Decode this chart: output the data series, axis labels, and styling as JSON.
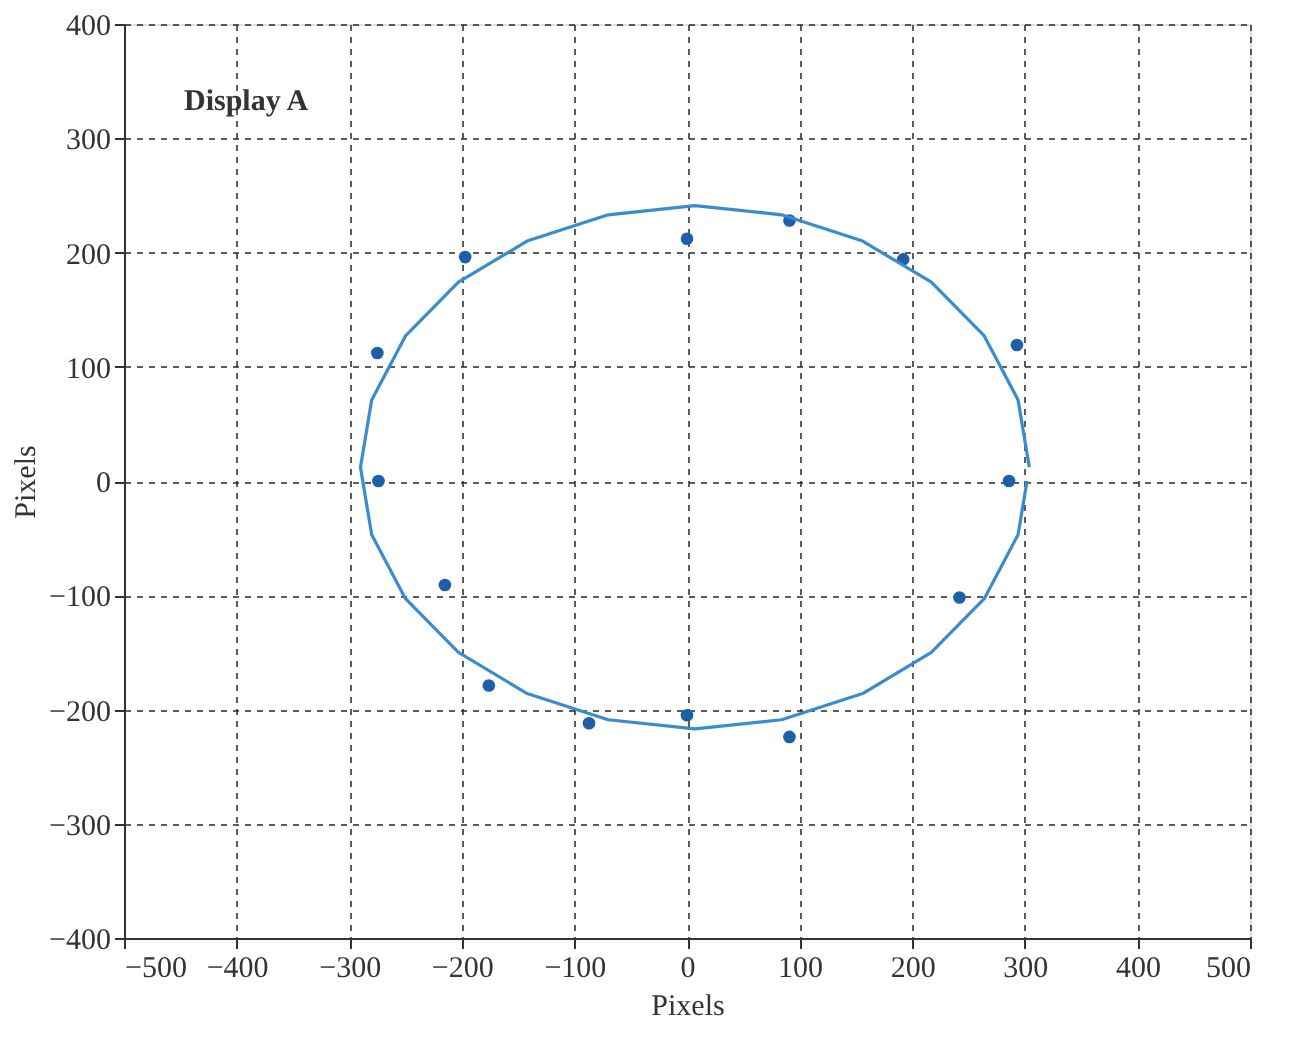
{
  "chart_data": {
    "type": "scatter",
    "xlabel": "Pixels",
    "ylabel": "Pixels",
    "annotations": [
      "Display A"
    ],
    "series": [
      {
        "color": "#1f5fa8",
        "x": [
          -197,
          0,
          91,
          192,
          293,
          286,
          242,
          91,
          0,
          -87,
          -176,
          -215,
          -274,
          -275
        ],
        "values": [
          196,
          212,
          228,
          194,
          119,
          0,
          -102,
          -224,
          -205,
          -212,
          -179,
          -91,
          0,
          112
        ]
      },
      {
        "type": "line",
        "marker": "none",
        "color": "#3a8ccc",
        "x": [
          304,
          294,
          264,
          217,
          156,
          84,
          7,
          -70,
          -142,
          -203,
          -250,
          -280,
          -290,
          -280,
          -250,
          -203,
          -142,
          -70,
          7,
          84,
          156,
          217,
          264,
          294,
          302
        ],
        "values": [
          12,
          71,
          127,
          174,
          210,
          233,
          241,
          233,
          210,
          174,
          127,
          71,
          12,
          -47,
          -103,
          -150,
          -186,
          -209,
          -217,
          -209,
          -186,
          -150,
          -103,
          -47,
          0
        ]
      }
    ],
    "xlim": [
      -500,
      500
    ],
    "ylim": [
      -400,
      400
    ],
    "xticks": [
      -500,
      -400,
      -300,
      -200,
      -100,
      0,
      100,
      200,
      300,
      400,
      500
    ],
    "yticks": [
      -400,
      -300,
      -200,
      -100,
      0,
      100,
      200,
      300,
      400
    ],
    "grid": true,
    "legend": false,
    "marker": "circle",
    "line_style": "solid"
  }
}
